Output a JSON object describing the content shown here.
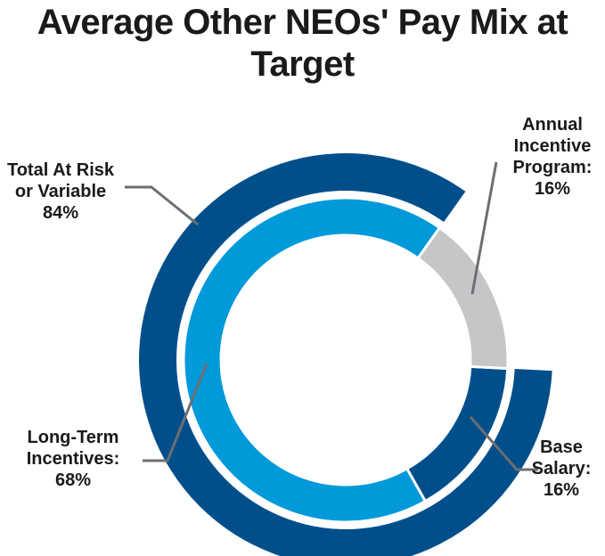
{
  "title": {
    "line1": "Average Other NEOs' Pay Mix at",
    "line2": "Target"
  },
  "colors": {
    "outer_ring": "#004f8b",
    "long_term_incentives": "#0099da",
    "annual_incentive": "#c4c6c8",
    "base_salary": "#004f8b",
    "leader_line": "#6d6e71",
    "text": "#1a1a1a"
  },
  "chart_data": {
    "type": "pie",
    "style": "nested donut",
    "title": "Average Other NEOs' Pay Mix at Target",
    "outer_ring": [
      {
        "label": "Total At Risk or Variable",
        "value": 84,
        "display": [
          "Total At Risk",
          "or Variable",
          "84%"
        ]
      }
    ],
    "inner_ring": [
      {
        "label": "Long-Term Incentives",
        "value": 68,
        "display": [
          "Long-Term",
          "Incentives:",
          "68%"
        ]
      },
      {
        "label": "Annual Incentive Program",
        "value": 16,
        "display": [
          "Annual",
          "Incentive",
          "Program:",
          "16%"
        ]
      },
      {
        "label": "Base Salary",
        "value": 16,
        "display": [
          "Base",
          "Salary:",
          "16%"
        ]
      }
    ]
  }
}
